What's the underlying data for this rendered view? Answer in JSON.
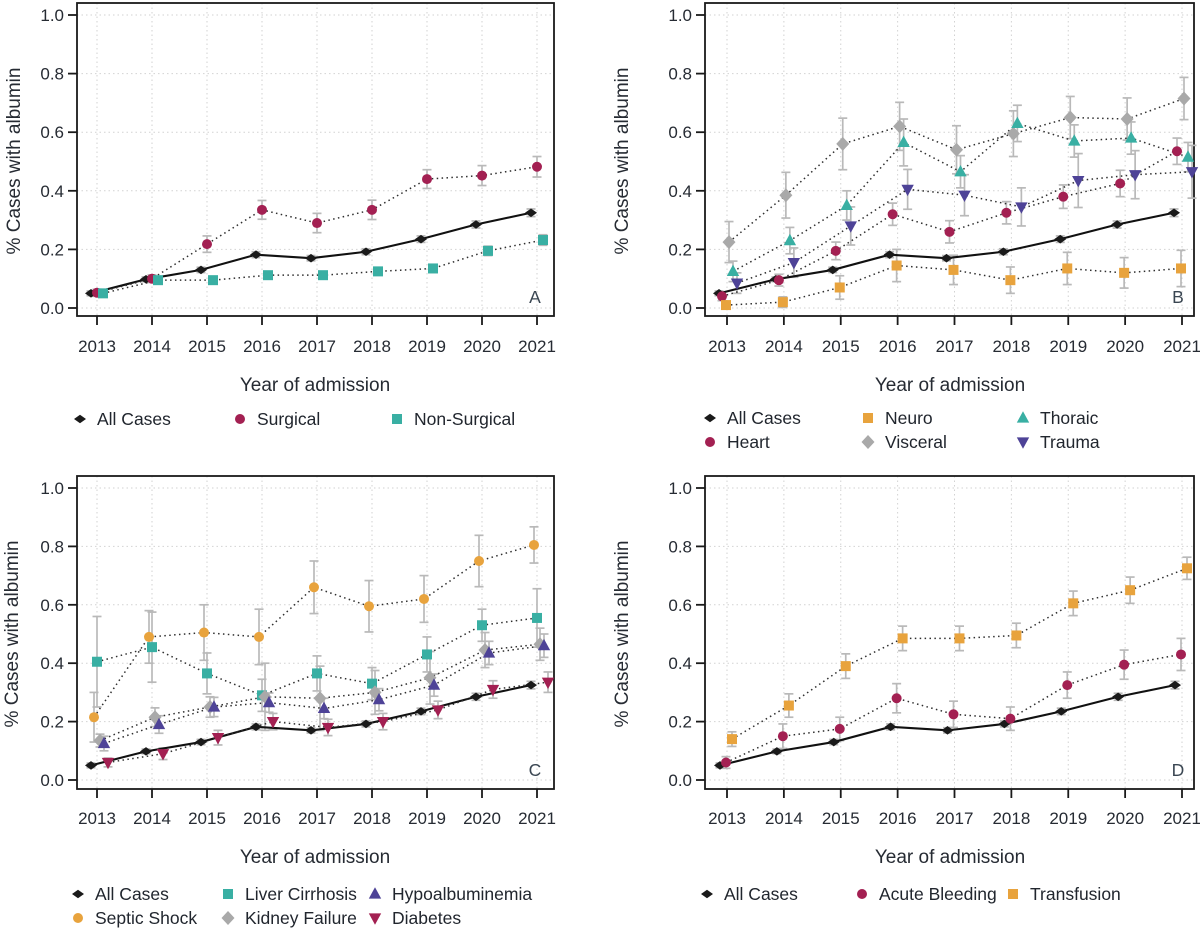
{
  "figure": {
    "description": "Four-panel faceted line chart of albumin use over time",
    "background": "#ffffff",
    "xlabel": "Year of admission",
    "ylabel": "% Cases with albumin",
    "panel_letters": [
      "A",
      "B",
      "C",
      "D"
    ]
  },
  "palette": {
    "black": "#1a1a1a",
    "crimson": "#A32052",
    "teal": "#39AFA3",
    "orange": "#E8A33D",
    "gray": "#A9A9A9",
    "purple": "#4E4397",
    "error_bar": "#B9B9B9",
    "gridline": "#D2D2D2",
    "text": "#262B33",
    "panel_letter": "#3A4652"
  },
  "chart_data": [
    {
      "type": "line",
      "panel_label": "A",
      "x": [
        2013,
        2014,
        2015,
        2016,
        2017,
        2018,
        2019,
        2020,
        2021
      ],
      "xlabel": "Year of admission",
      "ylabel": "% Cases with albumin",
      "ylim": [
        0.0,
        1.0
      ],
      "yticks": [
        0.0,
        0.2,
        0.4,
        0.6,
        0.8,
        1.0
      ],
      "ytick_labels": [
        "0.0",
        "0.2",
        "0.4",
        "0.6",
        "0.8",
        "1.0"
      ],
      "grid": true,
      "legend_position": "below",
      "series": [
        {
          "name": "All Cases",
          "marker": "diamond-small",
          "color": "#1a1a1a",
          "line": "solid",
          "values": [
            0.05,
            0.098,
            0.13,
            0.182,
            0.17,
            0.192,
            0.235,
            0.285,
            0.325
          ],
          "errors": [
            0.008,
            0.008,
            0.009,
            0.01,
            0.009,
            0.01,
            0.011,
            0.012,
            0.013
          ]
        },
        {
          "name": "Surgical",
          "marker": "circle",
          "color": "#A32052",
          "line": "dotted",
          "values": [
            0.052,
            0.1,
            0.218,
            0.335,
            0.29,
            0.335,
            0.44,
            0.452,
            0.482
          ],
          "errors": [
            0.012,
            0.013,
            0.028,
            0.032,
            0.033,
            0.033,
            0.032,
            0.034,
            0.035
          ]
        },
        {
          "name": "Non-Surgical",
          "marker": "square",
          "color": "#39AFA3",
          "line": "dotted",
          "values": [
            0.05,
            0.095,
            0.095,
            0.112,
            0.112,
            0.125,
            0.135,
            0.195,
            0.232
          ],
          "errors": [
            0.008,
            0.009,
            0.01,
            0.011,
            0.011,
            0.012,
            0.014,
            0.016,
            0.018
          ]
        }
      ],
      "legend_rows": [
        [
          "All Cases",
          "Surgical",
          "Non-Surgical"
        ]
      ]
    },
    {
      "type": "line",
      "panel_label": "B",
      "x": [
        2013,
        2014,
        2015,
        2016,
        2017,
        2018,
        2019,
        2020,
        2021
      ],
      "xlabel": "Year of admission",
      "ylabel": "% Cases with albumin",
      "ylim": [
        0.0,
        1.0
      ],
      "yticks": [
        0.0,
        0.2,
        0.4,
        0.6,
        0.8,
        1.0
      ],
      "ytick_labels": [
        "0.0",
        "0.2",
        "0.4",
        "0.6",
        "0.8",
        "1.0"
      ],
      "grid": true,
      "legend_position": "below",
      "series": [
        {
          "name": "All Cases",
          "marker": "diamond-small",
          "color": "#1a1a1a",
          "line": "solid",
          "values": [
            0.05,
            0.098,
            0.13,
            0.182,
            0.17,
            0.192,
            0.235,
            0.285,
            0.325
          ],
          "errors": [
            0.008,
            0.008,
            0.009,
            0.01,
            0.009,
            0.01,
            0.011,
            0.012,
            0.013
          ]
        },
        {
          "name": "Heart",
          "marker": "circle",
          "color": "#A32052",
          "line": "dotted",
          "values": [
            0.04,
            0.095,
            0.195,
            0.32,
            0.26,
            0.325,
            0.38,
            0.425,
            0.535
          ],
          "errors": [
            0.015,
            0.02,
            0.03,
            0.038,
            0.038,
            0.038,
            0.04,
            0.045,
            0.045
          ]
        },
        {
          "name": "Neuro",
          "marker": "square",
          "color": "#E8A33D",
          "line": "dotted",
          "values": [
            0.01,
            0.02,
            0.07,
            0.145,
            0.13,
            0.095,
            0.135,
            0.12,
            0.135
          ],
          "errors": [
            0.012,
            0.018,
            0.04,
            0.055,
            0.05,
            0.045,
            0.055,
            0.052,
            0.062
          ]
        },
        {
          "name": "Visceral",
          "marker": "diamond",
          "color": "#A9A9A9",
          "line": "dotted",
          "values": [
            0.225,
            0.385,
            0.56,
            0.62,
            0.54,
            0.595,
            0.65,
            0.645,
            0.715
          ],
          "errors": [
            0.07,
            0.078,
            0.088,
            0.082,
            0.082,
            0.078,
            0.072,
            0.072,
            0.072
          ]
        },
        {
          "name": "Thoraic",
          "marker": "triangle-up",
          "color": "#39AFA3",
          "line": "dotted",
          "values": [
            0.125,
            0.23,
            0.35,
            0.565,
            0.465,
            0.63,
            0.57,
            0.58,
            0.515
          ],
          "errors": [
            0.035,
            0.045,
            0.05,
            0.08,
            0.055,
            0.062,
            0.055,
            0.055,
            0.05
          ]
        },
        {
          "name": "Trauma",
          "marker": "triangle-down",
          "color": "#4E4397",
          "line": "dotted",
          "values": [
            0.085,
            0.155,
            0.28,
            0.405,
            0.385,
            0.345,
            0.435,
            0.455,
            0.465
          ],
          "errors": [
            0.035,
            0.05,
            0.065,
            0.068,
            0.07,
            0.065,
            0.092,
            0.082,
            0.09
          ]
        }
      ],
      "legend_rows": [
        [
          "All Cases",
          "Neuro",
          "Thoraic"
        ],
        [
          "Heart",
          "Visceral",
          "Trauma"
        ]
      ]
    },
    {
      "type": "line",
      "panel_label": "C",
      "x": [
        2013,
        2014,
        2015,
        2016,
        2017,
        2018,
        2019,
        2020,
        2021
      ],
      "xlabel": "Year of admission",
      "ylabel": "% Cases with albumin",
      "ylim": [
        0.0,
        1.0
      ],
      "yticks": [
        0.0,
        0.2,
        0.4,
        0.6,
        0.8,
        1.0
      ],
      "ytick_labels": [
        "0.0",
        "0.2",
        "0.4",
        "0.6",
        "0.8",
        "1.0"
      ],
      "grid": true,
      "legend_position": "below",
      "series": [
        {
          "name": "All Cases",
          "marker": "diamond-small",
          "color": "#1a1a1a",
          "line": "solid",
          "values": [
            0.05,
            0.098,
            0.13,
            0.182,
            0.17,
            0.192,
            0.235,
            0.285,
            0.325
          ],
          "errors": [
            0.008,
            0.008,
            0.009,
            0.01,
            0.009,
            0.01,
            0.011,
            0.012,
            0.013
          ]
        },
        {
          "name": "Septic Shock",
          "marker": "circle",
          "color": "#E8A33D",
          "line": "dotted",
          "values": [
            0.215,
            0.49,
            0.505,
            0.49,
            0.66,
            0.595,
            0.62,
            0.75,
            0.805
          ],
          "errors": [
            0.085,
            0.09,
            0.095,
            0.095,
            0.09,
            0.088,
            0.08,
            0.088,
            0.062
          ]
        },
        {
          "name": "Liver Cirrhosis",
          "marker": "square",
          "color": "#39AFA3",
          "line": "dotted",
          "values": [
            0.405,
            0.455,
            0.365,
            0.29,
            0.365,
            0.33,
            0.43,
            0.53,
            0.555
          ],
          "errors": [
            0.155,
            0.12,
            0.07,
            0.055,
            0.06,
            0.055,
            0.06,
            0.055,
            0.1
          ]
        },
        {
          "name": "Kidney Failure",
          "marker": "diamond",
          "color": "#A9A9A9",
          "line": "dotted",
          "values": [
            0.135,
            0.215,
            0.25,
            0.285,
            0.28,
            0.3,
            0.35,
            0.445,
            0.465
          ],
          "errors": [
            0.022,
            0.032,
            0.035,
            0.115,
            0.11,
            0.075,
            0.09,
            0.06,
            0.055
          ]
        },
        {
          "name": "Hypoalbuminemia",
          "marker": "triangle-up",
          "color": "#4E4397",
          "line": "dotted",
          "values": [
            0.125,
            0.19,
            0.25,
            0.265,
            0.245,
            0.275,
            0.325,
            0.435,
            0.46
          ],
          "errors": [
            0.025,
            0.03,
            0.033,
            0.033,
            0.035,
            0.038,
            0.038,
            0.04,
            0.04
          ]
        },
        {
          "name": "Diabetes",
          "marker": "triangle-down",
          "color": "#A32052",
          "line": "dotted",
          "values": [
            0.06,
            0.09,
            0.145,
            0.2,
            0.18,
            0.2,
            0.24,
            0.31,
            0.335
          ],
          "errors": [
            0.015,
            0.02,
            0.025,
            0.028,
            0.028,
            0.028,
            0.03,
            0.03,
            0.035
          ]
        }
      ],
      "legend_rows": [
        [
          "All Cases",
          "Liver Cirrhosis",
          "Hypoalbuminemia"
        ],
        [
          "Septic Shock",
          "Kidney Failure",
          "Diabetes"
        ]
      ]
    },
    {
      "type": "line",
      "panel_label": "D",
      "x": [
        2013,
        2014,
        2015,
        2016,
        2017,
        2018,
        2019,
        2020,
        2021
      ],
      "xlabel": "Year of admission",
      "ylabel": "% Cases with albumin",
      "ylim": [
        0.0,
        1.0
      ],
      "yticks": [
        0.0,
        0.2,
        0.4,
        0.6,
        0.8,
        1.0
      ],
      "ytick_labels": [
        "0.0",
        "0.2",
        "0.4",
        "0.6",
        "0.8",
        "1.0"
      ],
      "grid": true,
      "legend_position": "below",
      "series": [
        {
          "name": "All Cases",
          "marker": "diamond-small",
          "color": "#1a1a1a",
          "line": "solid",
          "values": [
            0.05,
            0.098,
            0.13,
            0.182,
            0.17,
            0.192,
            0.235,
            0.285,
            0.325
          ],
          "errors": [
            0.008,
            0.008,
            0.009,
            0.01,
            0.009,
            0.01,
            0.011,
            0.012,
            0.013
          ]
        },
        {
          "name": "Acute Bleeding",
          "marker": "circle",
          "color": "#A32052",
          "line": "dotted",
          "values": [
            0.06,
            0.15,
            0.175,
            0.28,
            0.225,
            0.21,
            0.325,
            0.395,
            0.43
          ],
          "errors": [
            0.02,
            0.042,
            0.04,
            0.05,
            0.045,
            0.04,
            0.045,
            0.05,
            0.055
          ]
        },
        {
          "name": "Transfusion",
          "marker": "square",
          "color": "#E8A33D",
          "line": "dotted",
          "values": [
            0.14,
            0.255,
            0.39,
            0.485,
            0.485,
            0.495,
            0.605,
            0.65,
            0.725
          ],
          "errors": [
            0.025,
            0.04,
            0.042,
            0.042,
            0.042,
            0.042,
            0.042,
            0.045,
            0.038
          ]
        }
      ],
      "legend_rows": [
        [
          "All Cases",
          "Acute Bleeding",
          "Transfusion"
        ]
      ]
    }
  ]
}
